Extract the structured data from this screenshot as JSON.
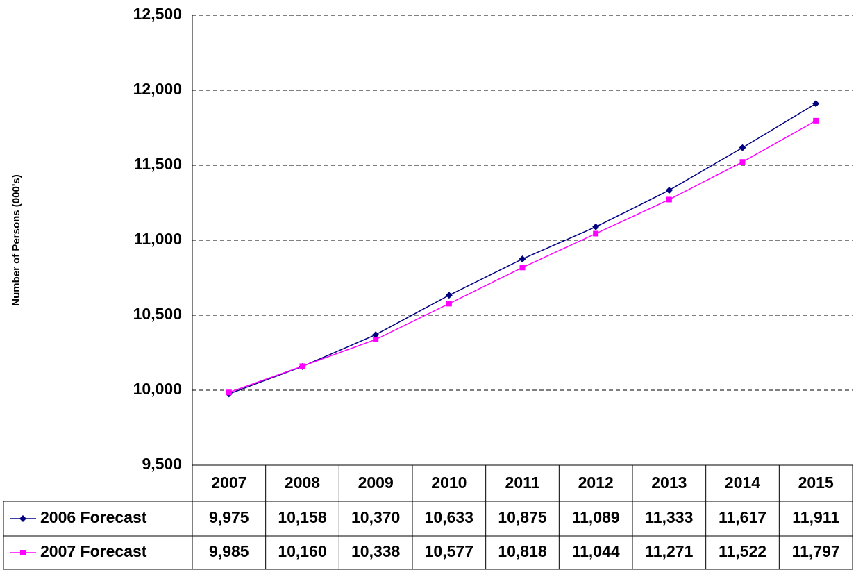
{
  "chart_data": {
    "type": "line",
    "y_axis_label": "Number of Persons (000's)",
    "categories": [
      "2007",
      "2008",
      "2009",
      "2010",
      "2011",
      "2012",
      "2013",
      "2014",
      "2015"
    ],
    "series": [
      {
        "name": "2006 Forecast",
        "color": "#000080",
        "marker": "diamond",
        "values": [
          9975,
          10158,
          10370,
          10633,
          10875,
          11089,
          11333,
          11617,
          11911
        ],
        "value_labels": [
          "9,975",
          "10,158",
          "10,370",
          "10,633",
          "10,875",
          "11,089",
          "11,333",
          "11,617",
          "11,911"
        ]
      },
      {
        "name": "2007 Forecast",
        "color": "#ff00ff",
        "marker": "square",
        "values": [
          9985,
          10160,
          10338,
          10577,
          10818,
          11044,
          11271,
          11522,
          11797
        ],
        "value_labels": [
          "9,985",
          "10,160",
          "10,338",
          "10,577",
          "10,818",
          "11,044",
          "11,271",
          "11,522",
          "11,797"
        ]
      }
    ],
    "ylim": [
      9500,
      12500
    ],
    "yticks": [
      {
        "value": 9500,
        "label": "9,500"
      },
      {
        "value": 10000,
        "label": "10,000"
      },
      {
        "value": 10500,
        "label": "10,500"
      },
      {
        "value": 11000,
        "label": "11,000"
      },
      {
        "value": 11500,
        "label": "11,500"
      },
      {
        "value": 12000,
        "label": "12,000"
      },
      {
        "value": 12500,
        "label": "12,500"
      }
    ],
    "grid": true
  }
}
